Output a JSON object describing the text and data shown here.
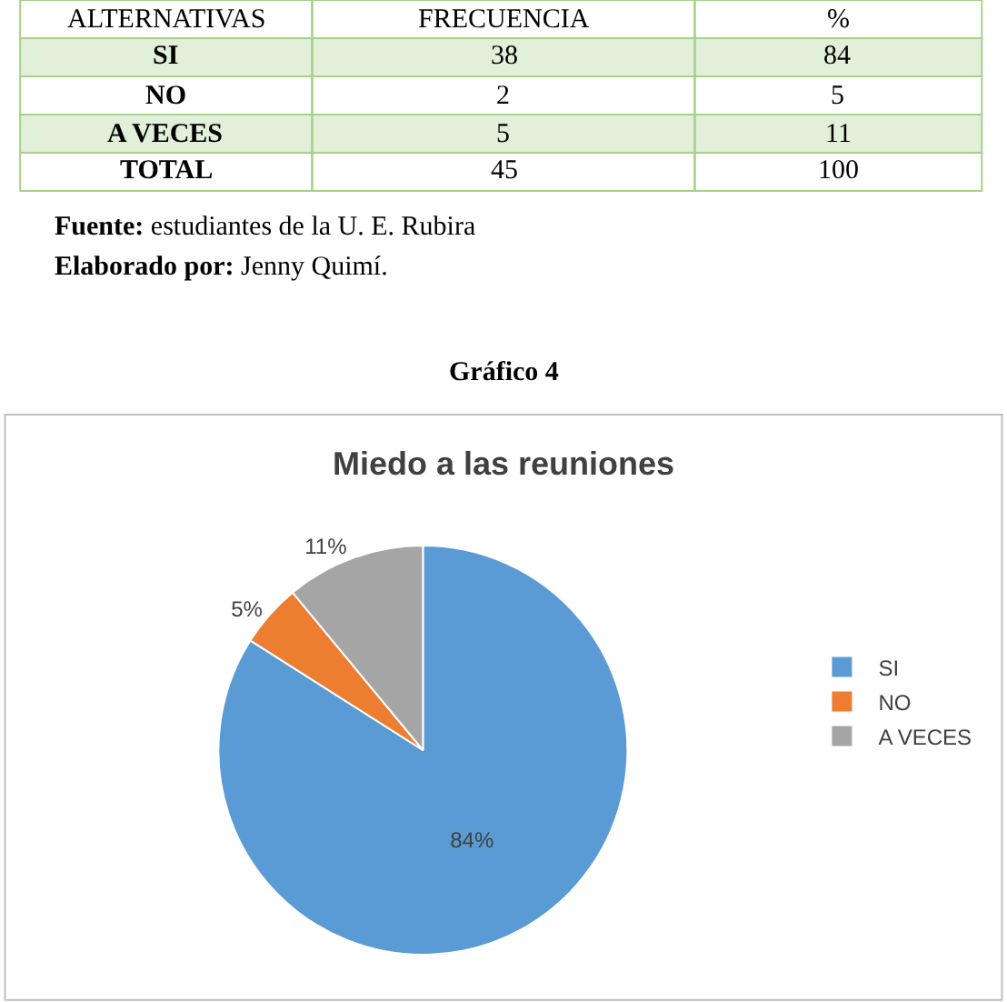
{
  "chart_data": [
    {
      "type": "other",
      "xlabel": "ALTERNATIVAS",
      "categories": [
        "SI",
        "NO",
        "A VECES",
        "TOTAL"
      ],
      "data_labels": true,
      "series": [
        {
          "name": "FRECUENCIA",
          "values": [
            38,
            2,
            5,
            45
          ],
          "colors": [
            "#e2efd9",
            "#ffffff",
            "#e2efd9",
            "#ffffff"
          ]
        },
        {
          "name": "%",
          "values": [
            84,
            5,
            11,
            100
          ],
          "colors": [
            "#e2efd9",
            "#ffffff",
            "#e2efd9",
            "#ffffff"
          ]
        }
      ],
      "annotations": [
        "Fuente: estudiantes de la U. E. Rubira",
        "Elaborado por: Jenny Quimí.",
        "Gráfico 4"
      ]
    },
    {
      "type": "pie",
      "title": "Miedo a las reuniones",
      "categories": [
        "SI",
        "NO",
        "A VECES"
      ],
      "values": [
        84,
        5,
        11
      ],
      "colors": [
        "#5b9bd5",
        "#ed7d31",
        "#a5a5a5"
      ],
      "value_labels": [
        "84%",
        "5%",
        "11%"
      ],
      "legend": "right"
    }
  ]
}
